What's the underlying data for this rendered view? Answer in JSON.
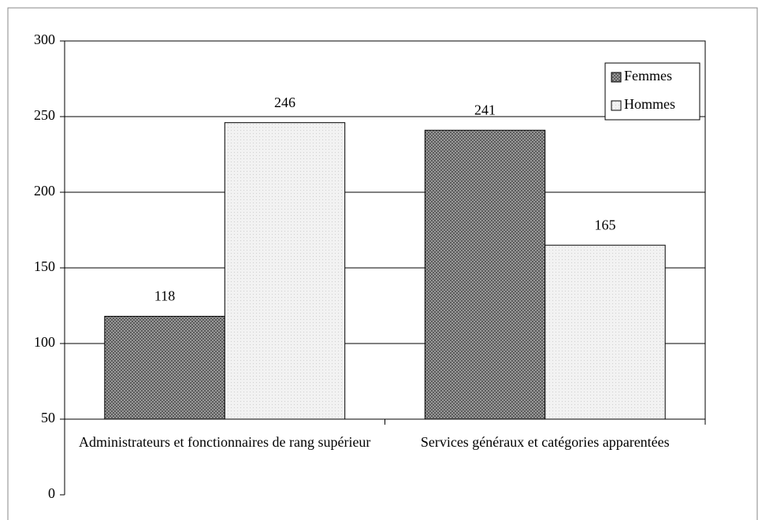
{
  "chart_data": {
    "type": "bar",
    "categories": [
      "Administrateurs et fonctionnaires de rang supérieur",
      "Services généraux et catégories apparentées"
    ],
    "series": [
      {
        "name": "Femmes",
        "color": "#8c8c8c",
        "values": [
          118,
          241
        ]
      },
      {
        "name": "Hommes",
        "color": "#eeeeee",
        "values": [
          246,
          165
        ]
      }
    ],
    "ylim": [
      0,
      300
    ],
    "yticks": [
      0,
      50,
      100,
      150,
      200,
      250,
      300
    ],
    "x_axis_crosses": 50,
    "grid": true,
    "legend": "top-right",
    "data_labels": true
  }
}
